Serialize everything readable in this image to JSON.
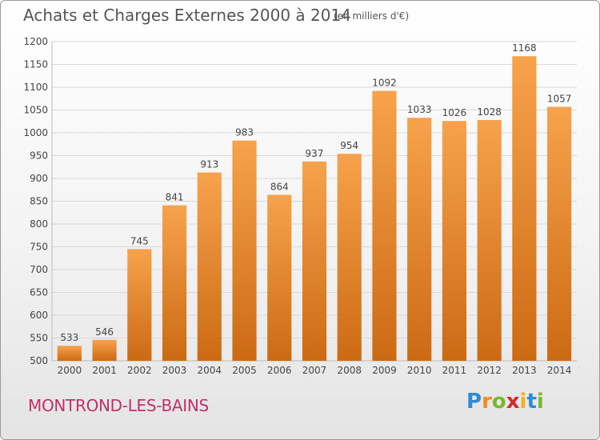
{
  "title": "Achats et Charges Externes 2000 à 2014",
  "subtitle": "(en milliers d'€)",
  "city": "MONTROND-LES-BAINS",
  "logo": {
    "letters": [
      "P",
      "r",
      "o",
      "x",
      "i",
      "t",
      "i"
    ],
    "colors": [
      "#2e8bd4",
      "#f28c1e",
      "#7ab829",
      "#d6262b",
      "#f2b21e",
      "#2e8bd4",
      "#7ab829"
    ]
  },
  "colors": {
    "bar_top": "#f7a24c",
    "bar_bottom": "#cc6a14",
    "grid": "#d8d8d8",
    "axis_text": "#444444"
  },
  "chart_data": {
    "type": "bar",
    "categories": [
      "2000",
      "2001",
      "2002",
      "2003",
      "2004",
      "2005",
      "2006",
      "2007",
      "2008",
      "2009",
      "2010",
      "2011",
      "2012",
      "2013",
      "2014"
    ],
    "values": [
      533,
      546,
      745,
      841,
      913,
      983,
      864,
      937,
      954,
      1092,
      1033,
      1026,
      1028,
      1168,
      1057
    ],
    "ylim": [
      500,
      1200
    ],
    "yticks": [
      500,
      550,
      600,
      650,
      700,
      750,
      800,
      850,
      900,
      950,
      1000,
      1050,
      1100,
      1150,
      1200
    ],
    "grid": true,
    "data_labels": true
  }
}
